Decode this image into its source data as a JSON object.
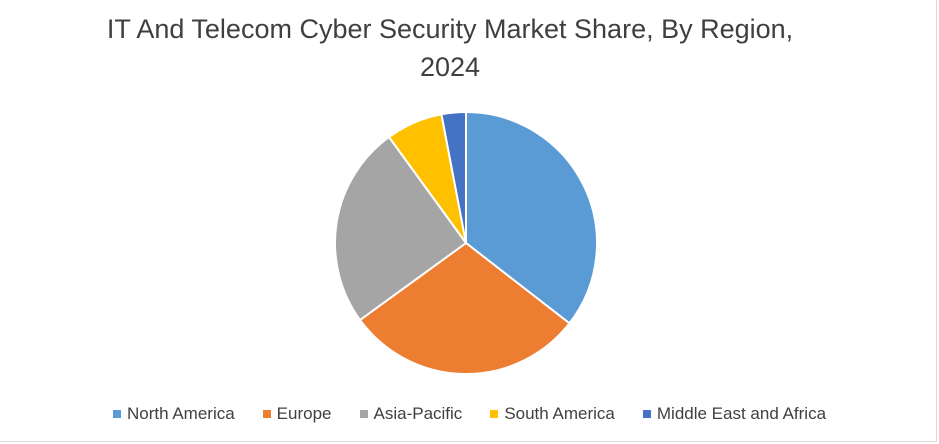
{
  "chart_data": {
    "type": "pie",
    "title_line1": "IT And Telecom Cyber Security Market Share, By Region,",
    "title_line2": "2024",
    "slices": [
      {
        "label": "North America",
        "value": 35.5,
        "color": "#5b9bd5"
      },
      {
        "label": "Europe",
        "value": 29.5,
        "color": "#ed7d31"
      },
      {
        "label": "Asia-Pacific",
        "value": 25.0,
        "color": "#a5a5a5"
      },
      {
        "label": "South America",
        "value": 7.0,
        "color": "#ffc000"
      },
      {
        "label": "Middle East and Africa",
        "value": 3.0,
        "color": "#4472c4"
      }
    ],
    "legend_position": "bottom"
  }
}
